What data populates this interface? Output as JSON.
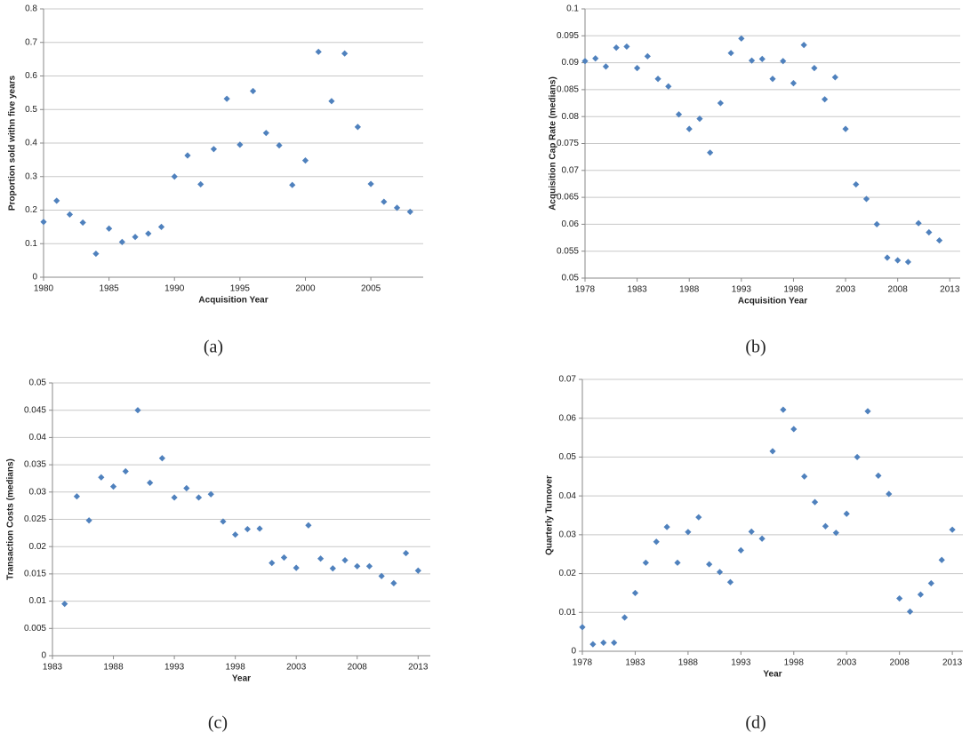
{
  "chart_data": [
    {
      "type": "scatter",
      "caption": "(a)",
      "x_label": "Acquisition Year",
      "y_label": "Proportion sold withn five years",
      "color": "#4f81bd",
      "grid": true,
      "x": [
        1980,
        1981,
        1982,
        1983,
        1984,
        1985,
        1986,
        1987,
        1988,
        1989,
        1990,
        1991,
        1992,
        1993,
        1994,
        1995,
        1996,
        1997,
        1998,
        1999,
        2000,
        2001,
        2002,
        2003,
        2004,
        2005,
        2006,
        2007,
        2008
      ],
      "values": [
        0.165,
        0.228,
        0.187,
        0.163,
        0.07,
        0.145,
        0.105,
        0.12,
        0.13,
        0.15,
        0.3,
        0.363,
        0.277,
        0.382,
        0.532,
        0.395,
        0.555,
        0.43,
        0.393,
        0.275,
        0.348,
        0.672,
        0.525,
        0.667,
        0.448,
        0.278,
        0.225,
        0.207,
        0.195
      ],
      "xlim": [
        1980,
        2009
      ],
      "xticks": [
        1980,
        1985,
        1990,
        1995,
        2000,
        2005
      ],
      "ylim": [
        0,
        0.8
      ],
      "yticks": [
        0,
        0.1,
        0.2,
        0.3,
        0.4,
        0.5,
        0.6,
        0.7,
        0.8
      ]
    },
    {
      "type": "scatter",
      "caption": "(b)",
      "x_label": "Acquisition Year",
      "y_label": "Acquisition Cap Rate (medians)",
      "color": "#4f81bd",
      "grid": true,
      "x": [
        1978,
        1979,
        1980,
        1981,
        1982,
        1983,
        1984,
        1985,
        1986,
        1987,
        1988,
        1989,
        1990,
        1991,
        1992,
        1993,
        1994,
        1995,
        1996,
        1997,
        1998,
        1999,
        2000,
        2001,
        2002,
        2003,
        2004,
        2005,
        2006,
        2007,
        2008,
        2009,
        2010,
        2011,
        2012
      ],
      "values": [
        0.0903,
        0.0908,
        0.0893,
        0.0928,
        0.093,
        0.089,
        0.0912,
        0.087,
        0.0856,
        0.0804,
        0.0777,
        0.0796,
        0.0733,
        0.0825,
        0.0918,
        0.0945,
        0.0904,
        0.0907,
        0.087,
        0.0903,
        0.0862,
        0.0933,
        0.089,
        0.0832,
        0.0873,
        0.0777,
        0.0674,
        0.0647,
        0.06,
        0.0538,
        0.0533,
        0.053,
        0.0602,
        0.0585,
        0.057
      ],
      "xlim": [
        1978,
        2014
      ],
      "xticks": [
        1978,
        1983,
        1988,
        1993,
        1998,
        2003,
        2008,
        2013
      ],
      "ylim": [
        0.05,
        0.1
      ],
      "yticks": [
        0.05,
        0.055,
        0.06,
        0.065,
        0.07,
        0.075,
        0.08,
        0.085,
        0.09,
        0.095,
        0.1
      ]
    },
    {
      "type": "scatter",
      "caption": "(c)",
      "x_label": "Year",
      "y_label": "Transaction Costs (medians)",
      "color": "#4f81bd",
      "grid": true,
      "x": [
        1984,
        1985,
        1986,
        1987,
        1988,
        1989,
        1990,
        1991,
        1992,
        1993,
        1994,
        1995,
        1996,
        1997,
        1998,
        1999,
        2000,
        2001,
        2002,
        2003,
        2004,
        2005,
        2006,
        2007,
        2008,
        2009,
        2010,
        2011,
        2012,
        2013
      ],
      "values": [
        0.0095,
        0.0292,
        0.0248,
        0.0327,
        0.031,
        0.0338,
        0.045,
        0.0317,
        0.0362,
        0.029,
        0.0307,
        0.029,
        0.0296,
        0.0246,
        0.0222,
        0.0232,
        0.0233,
        0.017,
        0.018,
        0.0161,
        0.0239,
        0.0178,
        0.016,
        0.0175,
        0.0164,
        0.0164,
        0.0146,
        0.0133,
        0.0188,
        0.0156
      ],
      "xlim": [
        1983,
        2014
      ],
      "xticks": [
        1983,
        1988,
        1993,
        1998,
        2003,
        2008,
        2013
      ],
      "ylim": [
        0,
        0.05
      ],
      "yticks": [
        0,
        0.005,
        0.01,
        0.015,
        0.02,
        0.025,
        0.03,
        0.035,
        0.04,
        0.045,
        0.05
      ]
    },
    {
      "type": "scatter",
      "caption": "(d)",
      "x_label": "Year",
      "y_label": "Quarterly Turnover",
      "color": "#4f81bd",
      "grid": true,
      "x": [
        1978,
        1979,
        1980,
        1981,
        1982,
        1983,
        1984,
        1985,
        1986,
        1987,
        1988,
        1989,
        1990,
        1991,
        1992,
        1993,
        1994,
        1995,
        1996,
        1997,
        1998,
        1999,
        2000,
        2001,
        2002,
        2003,
        2004,
        2005,
        2006,
        2007,
        2008,
        2009,
        2010,
        2011,
        2012,
        2013
      ],
      "values": [
        0.0062,
        0.0018,
        0.0022,
        0.0022,
        0.0087,
        0.015,
        0.0228,
        0.0282,
        0.032,
        0.0228,
        0.0307,
        0.0345,
        0.0224,
        0.0204,
        0.0178,
        0.026,
        0.0308,
        0.029,
        0.0515,
        0.0622,
        0.0572,
        0.045,
        0.0384,
        0.0322,
        0.0305,
        0.0354,
        0.05,
        0.0618,
        0.0452,
        0.0405,
        0.0136,
        0.0102,
        0.0146,
        0.0175,
        0.0235,
        0.0313
      ],
      "xlim": [
        1978,
        2014
      ],
      "xticks": [
        1978,
        1983,
        1988,
        1993,
        1998,
        2003,
        2008,
        2013
      ],
      "ylim": [
        0,
        0.07
      ],
      "yticks": [
        0,
        0.01,
        0.02,
        0.03,
        0.04,
        0.05,
        0.06,
        0.07
      ]
    }
  ]
}
